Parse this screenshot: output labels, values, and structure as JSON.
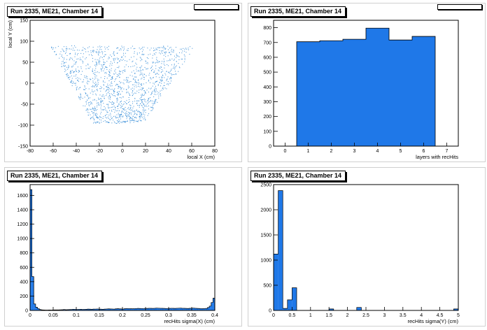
{
  "panels": {
    "p0": {
      "title": "Run 2335, ME21, Chamber 14"
    },
    "p1": {
      "title": "Run 2335, ME21, Chamber 14"
    },
    "p2": {
      "title": "Run 2335, ME21, Chamber 14"
    },
    "p3": {
      "title": "Run 2335, ME21, Chamber 14"
    }
  },
  "colors": {
    "fill": "#1f78e8",
    "frame": "#000000",
    "scatter": "#3a8fd8"
  },
  "chart_data": [
    {
      "type": "scatter",
      "xlabel": "local X (cm)",
      "ylabel": "local Y (cm)",
      "xlim": [
        -80,
        80
      ],
      "ylim": [
        -150,
        150
      ],
      "xticks": [
        -80,
        -60,
        -40,
        -20,
        0,
        20,
        40,
        60,
        80
      ],
      "yticks": [
        -150,
        -100,
        -50,
        0,
        50,
        100,
        150
      ],
      "region": {
        "y_bottom": -95,
        "y_top": 90,
        "x_half_bottom": 22,
        "x_half_top": 63
      },
      "n_points": 1500
    },
    {
      "type": "bar",
      "xlabel": "layers with recHits",
      "ylabel": "",
      "xlim": [
        -0.5,
        7.5
      ],
      "ylim": [
        0,
        850
      ],
      "xticks": [
        0,
        1,
        2,
        3,
        4,
        5,
        6,
        7
      ],
      "yticks": [
        0,
        100,
        200,
        300,
        400,
        500,
        600,
        700,
        800
      ],
      "bins": [
        [
          0.5,
          1.5,
          705
        ],
        [
          1.5,
          2.5,
          712
        ],
        [
          2.5,
          3.5,
          722
        ],
        [
          3.5,
          4.5,
          797
        ],
        [
          4.5,
          5.5,
          717
        ],
        [
          5.5,
          6.5,
          741
        ]
      ]
    },
    {
      "type": "bar",
      "xlabel": "recHits sigma(X) (cm)",
      "ylabel": "",
      "xlim": [
        0,
        0.4
      ],
      "ylim": [
        0,
        1750
      ],
      "xticks": [
        0,
        0.05,
        0.1,
        0.15,
        0.2,
        0.25,
        0.3,
        0.35,
        0.4
      ],
      "xtick_labels": [
        "0",
        "0.05",
        "0.1",
        "0.15",
        "0.2",
        "0.25",
        "0.3",
        "0.35",
        "0.4"
      ],
      "yticks": [
        0,
        200,
        400,
        600,
        800,
        1000,
        1200,
        1400,
        1600
      ],
      "bin_width": 0.004,
      "values": [
        1680,
        470,
        90,
        45,
        25,
        12,
        8,
        6,
        5,
        5,
        6,
        5,
        6,
        7,
        8,
        7,
        9,
        10,
        12,
        10,
        11,
        12,
        14,
        16,
        15,
        14,
        15,
        16,
        14,
        15,
        16,
        18,
        17,
        16,
        18,
        19,
        20,
        18,
        17,
        16,
        18,
        20,
        22,
        21,
        20,
        19,
        22,
        24,
        22,
        21,
        20,
        24,
        26,
        25,
        24,
        23,
        25,
        26,
        28,
        27,
        26,
        25,
        27,
        28,
        30,
        29,
        28,
        30,
        32,
        31,
        30,
        29,
        28,
        27,
        26,
        28,
        30,
        29,
        28,
        30,
        31,
        32,
        30,
        29,
        28,
        27,
        29,
        30,
        32,
        30,
        28,
        27,
        25,
        24,
        26,
        28,
        40,
        60,
        110,
        170
      ]
    },
    {
      "type": "bar",
      "xlabel": "recHits sigma(Y) (cm)",
      "ylabel": "",
      "xlim": [
        0,
        5
      ],
      "ylim": [
        0,
        2500
      ],
      "xticks": [
        0,
        0.5,
        1,
        1.5,
        2,
        2.5,
        3,
        3.5,
        4,
        4.5,
        5
      ],
      "xtick_labels": [
        "0",
        "0.5",
        "1",
        "1.5",
        "2",
        "2.5",
        "3",
        "3.5",
        "4",
        "4.5",
        "5"
      ],
      "yticks": [
        0,
        500,
        1000,
        1500,
        2000,
        2500
      ],
      "bin_width": 0.125,
      "values": [
        1120,
        2380,
        40,
        210,
        450,
        0,
        0,
        0,
        0,
        0,
        0,
        0,
        30,
        0,
        0,
        0,
        0,
        0,
        60,
        0,
        0,
        0,
        0,
        0,
        0,
        0,
        0,
        0,
        0,
        0,
        0,
        0,
        0,
        0,
        0,
        0,
        0,
        0,
        0,
        30
      ]
    }
  ]
}
